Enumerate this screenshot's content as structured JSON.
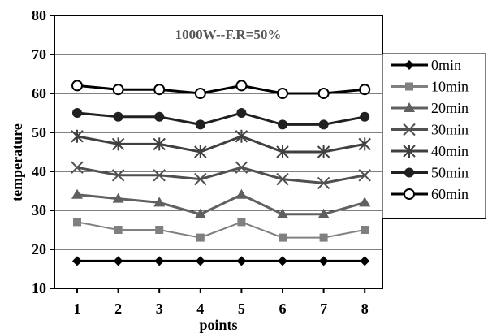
{
  "chart_data": {
    "type": "line",
    "title": "1000W--F.R=50%",
    "xlabel": "points",
    "ylabel": "temperature",
    "x": [
      1,
      2,
      3,
      4,
      5,
      6,
      7,
      8
    ],
    "x_tick_labels": [
      "1",
      "2",
      "3",
      "4",
      "5",
      "6",
      "7",
      "8"
    ],
    "ylim": [
      10,
      80
    ],
    "y_ticks": [
      10,
      20,
      30,
      40,
      50,
      60,
      70,
      80
    ],
    "y_tick_labels": [
      "10",
      "20",
      "30",
      "40",
      "50",
      "60",
      "70",
      "80"
    ],
    "grid": "horizontal",
    "legend_position": "right",
    "series": [
      {
        "name": "0min",
        "values": [
          17,
          17,
          17,
          17,
          17,
          17,
          17,
          17
        ],
        "color": "#000000",
        "marker": "diamond"
      },
      {
        "name": "10min",
        "values": [
          27,
          25,
          25,
          23,
          27,
          23,
          23,
          25
        ],
        "color": "#808080",
        "marker": "square"
      },
      {
        "name": "20min",
        "values": [
          34,
          33,
          32,
          29,
          34,
          29,
          29,
          32
        ],
        "color": "#606060",
        "marker": "triangle"
      },
      {
        "name": "30min",
        "values": [
          41,
          39,
          39,
          38,
          41,
          38,
          37,
          39
        ],
        "color": "#505050",
        "marker": "x"
      },
      {
        "name": "40min",
        "values": [
          49,
          47,
          47,
          45,
          49,
          45,
          45,
          47
        ],
        "color": "#404040",
        "marker": "star"
      },
      {
        "name": "50min",
        "values": [
          55,
          54,
          54,
          52,
          55,
          52,
          52,
          54
        ],
        "color": "#202020",
        "marker": "circle-filled"
      },
      {
        "name": "60min",
        "values": [
          62,
          61,
          61,
          60,
          62,
          60,
          60,
          61
        ],
        "color": "#000000",
        "marker": "circle-open"
      }
    ]
  }
}
